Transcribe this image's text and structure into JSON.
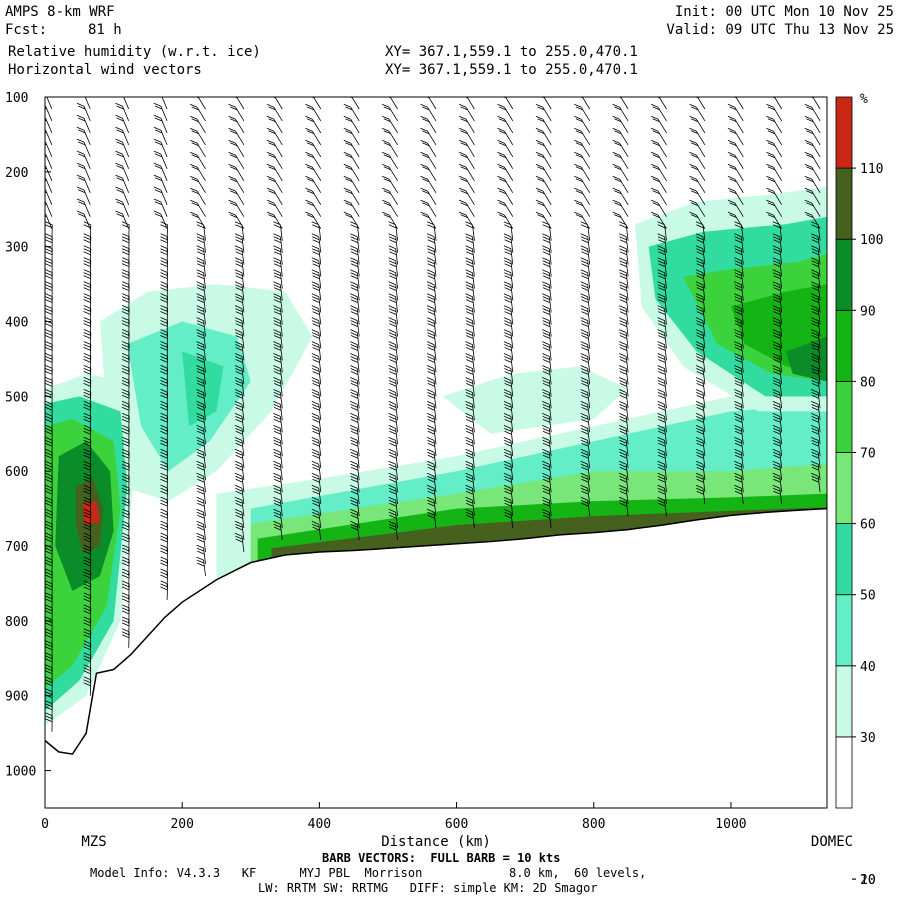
{
  "header": {
    "model": "AMPS 8-km WRF",
    "fcst_label": "Fcst:",
    "fcst_value": "81 h",
    "field1": "Relative humidity (w.r.t. ice)",
    "field2": "Horizontal wind vectors",
    "xy1": "XY= 367.1,559.1 to 255.0,470.1",
    "xy2": "XY= 367.1,559.1 to 255.0,470.1",
    "init": "Init: 00 UTC Mon 10 Nov 25",
    "valid": "Valid: 09 UTC Thu 13 Nov 25"
  },
  "footer": {
    "barb_note": "BARB VECTORS:  FULL BARB = 10 kts",
    "model_info": "Model Info: V4.3.3   KF      MYJ PBL  Morrison            8.0 km,  60 levels,",
    "physics": "LW: RRTM SW: RRTMG   DIFF: simple KM: 2D Smagor"
  },
  "chart_data": {
    "type": "heatmap",
    "title": "Relative humidity (w.r.t. ice)",
    "xlabel": "Distance (km)",
    "ylabel": "",
    "xlim": [
      0,
      1140
    ],
    "ylim": [
      1050,
      100
    ],
    "x_ticks": [
      0,
      200,
      400,
      600,
      800,
      1000
    ],
    "y_ticks": [
      100,
      200,
      300,
      400,
      500,
      600,
      700,
      800,
      900,
      1000
    ],
    "x_endpoint_labels": [
      "MZS",
      "DOMEC"
    ],
    "colorbar": {
      "unit": "%",
      "ticks": [
        10,
        20,
        30,
        40,
        50,
        60,
        70,
        80,
        90,
        100,
        110
      ],
      "bins": [
        {
          "lo": 0,
          "hi": 30,
          "color": "#ffffff"
        },
        {
          "lo": 30,
          "hi": 40,
          "color": "#c8fae6"
        },
        {
          "lo": 40,
          "hi": 50,
          "color": "#64eec8"
        },
        {
          "lo": 50,
          "hi": 60,
          "color": "#32dca0"
        },
        {
          "lo": 60,
          "hi": 70,
          "color": "#78e678"
        },
        {
          "lo": 70,
          "hi": 80,
          "color": "#3cd23c"
        },
        {
          "lo": 80,
          "hi": 90,
          "color": "#14b414"
        },
        {
          "lo": 90,
          "hi": 100,
          "color": "#0a8c28"
        },
        {
          "lo": 100,
          "hi": 110,
          "color": "#46611e"
        },
        {
          "lo": 110,
          "hi": 120,
          "color": "#c82814"
        }
      ]
    },
    "terrain_surface_pressure": {
      "x": [
        0,
        20,
        40,
        60,
        75,
        100,
        125,
        150,
        175,
        200,
        250,
        300,
        350,
        400,
        450,
        500,
        550,
        600,
        650,
        700,
        750,
        800,
        850,
        900,
        950,
        1000,
        1050,
        1100,
        1140
      ],
      "p": [
        960,
        975,
        978,
        950,
        870,
        865,
        845,
        820,
        795,
        775,
        745,
        722,
        712,
        708,
        706,
        703,
        700,
        697,
        694,
        690,
        685,
        682,
        678,
        672,
        665,
        659,
        655,
        652,
        650
      ]
    },
    "rh_regions": [
      {
        "rh": 35,
        "polygon": [
          [
            80,
            400
          ],
          [
            150,
            360
          ],
          [
            250,
            350
          ],
          [
            350,
            360
          ],
          [
            390,
            420
          ],
          [
            330,
            520
          ],
          [
            250,
            600
          ],
          [
            180,
            640
          ],
          [
            110,
            620
          ],
          [
            90,
            520
          ]
        ]
      },
      {
        "rh": 45,
        "polygon": [
          [
            120,
            430
          ],
          [
            200,
            400
          ],
          [
            280,
            420
          ],
          [
            300,
            480
          ],
          [
            240,
            560
          ],
          [
            180,
            600
          ],
          [
            140,
            540
          ]
        ]
      },
      {
        "rh": 55,
        "polygon": [
          [
            200,
            440
          ],
          [
            260,
            460
          ],
          [
            250,
            520
          ],
          [
            210,
            540
          ]
        ]
      },
      {
        "rh": 35,
        "polygon": [
          [
            0,
            490
          ],
          [
            60,
            470
          ],
          [
            120,
            480
          ],
          [
            130,
            600
          ],
          [
            110,
            800
          ],
          [
            60,
            900
          ],
          [
            0,
            940
          ]
        ]
      },
      {
        "rh": 55,
        "polygon": [
          [
            0,
            510
          ],
          [
            50,
            500
          ],
          [
            110,
            520
          ],
          [
            120,
            620
          ],
          [
            100,
            800
          ],
          [
            50,
            880
          ],
          [
            0,
            920
          ]
        ]
      },
      {
        "rh": 75,
        "polygon": [
          [
            0,
            540
          ],
          [
            40,
            530
          ],
          [
            100,
            560
          ],
          [
            110,
            650
          ],
          [
            90,
            780
          ],
          [
            40,
            860
          ],
          [
            0,
            890
          ]
        ]
      },
      {
        "rh": 95,
        "polygon": [
          [
            20,
            580
          ],
          [
            60,
            560
          ],
          [
            95,
            600
          ],
          [
            100,
            680
          ],
          [
            80,
            740
          ],
          [
            40,
            760
          ],
          [
            15,
            700
          ]
        ]
      },
      {
        "rh": 105,
        "polygon": [
          [
            45,
            620
          ],
          [
            70,
            610
          ],
          [
            85,
            650
          ],
          [
            80,
            700
          ],
          [
            55,
            710
          ],
          [
            45,
            670
          ]
        ]
      },
      {
        "rh": 115,
        "polygon": [
          [
            55,
            643
          ],
          [
            75,
            640
          ],
          [
            80,
            668
          ],
          [
            58,
            672
          ]
        ]
      },
      {
        "rh": 35,
        "polygon": [
          [
            250,
            630
          ],
          [
            400,
            610
          ],
          [
            600,
            580
          ],
          [
            800,
            540
          ],
          [
            1000,
            500
          ],
          [
            1140,
            490
          ],
          [
            1140,
            660
          ],
          [
            250,
            770
          ]
        ]
      },
      {
        "rh": 45,
        "polygon": [
          [
            300,
            650
          ],
          [
            600,
            600
          ],
          [
            800,
            560
          ],
          [
            1000,
            520
          ],
          [
            1140,
            510
          ],
          [
            1140,
            655
          ],
          [
            300,
            730
          ]
        ]
      },
      {
        "rh": 65,
        "polygon": [
          [
            300,
            670
          ],
          [
            600,
            630
          ],
          [
            800,
            600
          ],
          [
            1000,
            600
          ],
          [
            1140,
            590
          ],
          [
            1140,
            655
          ],
          [
            300,
            725
          ]
        ]
      },
      {
        "rh": 85,
        "polygon": [
          [
            310,
            690
          ],
          [
            600,
            650
          ],
          [
            800,
            640
          ],
          [
            1000,
            635
          ],
          [
            1140,
            630
          ],
          [
            1140,
            655
          ],
          [
            310,
            722
          ]
        ]
      },
      {
        "rh": 105,
        "polygon": [
          [
            330,
            703
          ],
          [
            600,
            672
          ],
          [
            800,
            660
          ],
          [
            1000,
            653
          ],
          [
            1140,
            648
          ],
          [
            1140,
            656
          ],
          [
            330,
            718
          ]
        ]
      },
      {
        "rh": 35,
        "polygon": [
          [
            860,
            270
          ],
          [
            950,
            240
          ],
          [
            1060,
            230
          ],
          [
            1140,
            220
          ],
          [
            1140,
            520
          ],
          [
            1040,
            520
          ],
          [
            930,
            460
          ],
          [
            870,
            380
          ]
        ]
      },
      {
        "rh": 55,
        "polygon": [
          [
            880,
            300
          ],
          [
            960,
            280
          ],
          [
            1080,
            270
          ],
          [
            1140,
            260
          ],
          [
            1140,
            500
          ],
          [
            1050,
            500
          ],
          [
            950,
            440
          ],
          [
            890,
            370
          ]
        ]
      },
      {
        "rh": 75,
        "polygon": [
          [
            930,
            340
          ],
          [
            1000,
            330
          ],
          [
            1100,
            320
          ],
          [
            1140,
            310
          ],
          [
            1140,
            480
          ],
          [
            1060,
            470
          ],
          [
            980,
            430
          ]
        ]
      },
      {
        "rh": 85,
        "polygon": [
          [
            1000,
            380
          ],
          [
            1080,
            360
          ],
          [
            1140,
            350
          ],
          [
            1140,
            470
          ],
          [
            1080,
            460
          ],
          [
            1020,
            430
          ]
        ]
      },
      {
        "rh": 95,
        "polygon": [
          [
            1080,
            440
          ],
          [
            1140,
            420
          ],
          [
            1140,
            480
          ],
          [
            1090,
            470
          ]
        ]
      },
      {
        "rh": 35,
        "polygon": [
          [
            580,
            500
          ],
          [
            680,
            470
          ],
          [
            780,
            460
          ],
          [
            850,
            490
          ],
          [
            800,
            530
          ],
          [
            650,
            550
          ]
        ]
      }
    ]
  }
}
